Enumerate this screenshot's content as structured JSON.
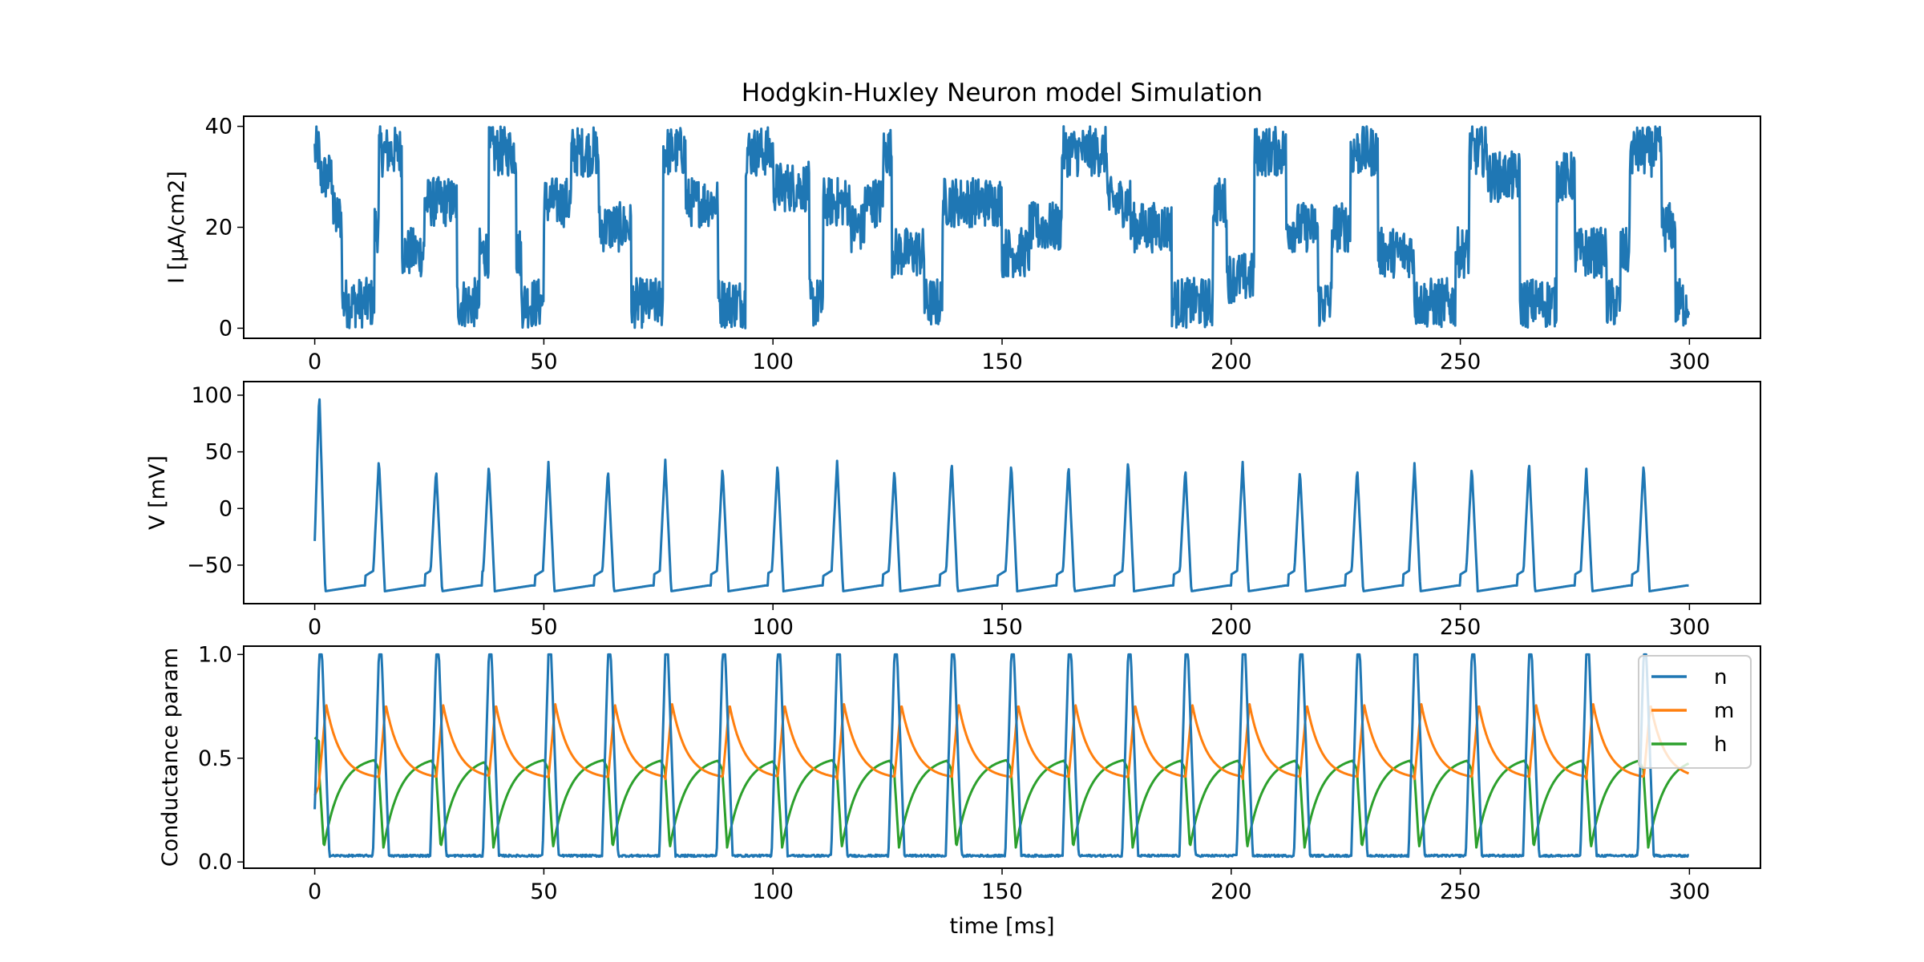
{
  "chart_data": [
    {
      "type": "line",
      "title": "Hodgkin-Huxley Neuron model Simulation",
      "xlabel": "",
      "ylabel": "I [µA/cm2]",
      "xlim": [
        -15.5,
        315.5
      ],
      "ylim": [
        -2,
        42
      ],
      "xticks": [
        0,
        50,
        100,
        150,
        200,
        250,
        300
      ],
      "xtick_labels": [
        "0",
        "50",
        "100",
        "150",
        "200",
        "250",
        "300"
      ],
      "yticks": [
        0,
        20,
        40
      ],
      "ytick_labels": [
        "0",
        "20",
        "40"
      ],
      "grid": false,
      "series": [
        {
          "name": "I",
          "color": "#1f77b4",
          "noise_amplitude": 5,
          "note": "noisy piecewise-constant input current; each segment lists start time (ms) and nominal level (µA/cm2)",
          "segments": [
            [
              0,
              35
            ],
            [
              1,
              30
            ],
            [
              4,
              22
            ],
            [
              6,
              5
            ],
            [
              13,
              20
            ],
            [
              14,
              35
            ],
            [
              19,
              15
            ],
            [
              24,
              25
            ],
            [
              31,
              5
            ],
            [
              36,
              15
            ],
            [
              38,
              35
            ],
            [
              44,
              15
            ],
            [
              45,
              5
            ],
            [
              50,
              25
            ],
            [
              56,
              35
            ],
            [
              62,
              20
            ],
            [
              69,
              5
            ],
            [
              76,
              35
            ],
            [
              81,
              25
            ],
            [
              88,
              5
            ],
            [
              94,
              35
            ],
            [
              100,
              28
            ],
            [
              108,
              5
            ],
            [
              111,
              25
            ],
            [
              117,
              20
            ],
            [
              120,
              25
            ],
            [
              124,
              35
            ],
            [
              126,
              15
            ],
            [
              133,
              5
            ],
            [
              137,
              25
            ],
            [
              141,
              25
            ],
            [
              144,
              25
            ],
            [
              150,
              15
            ],
            [
              156,
              20
            ],
            [
              163,
              35
            ],
            [
              173,
              25
            ],
            [
              178,
              20
            ],
            [
              187,
              5
            ],
            [
              196,
              25
            ],
            [
              199,
              10
            ],
            [
              205,
              35
            ],
            [
              212,
              20
            ],
            [
              219,
              5
            ],
            [
              222,
              20
            ],
            [
              226,
              35
            ],
            [
              232,
              15
            ],
            [
              240,
              5
            ],
            [
              249,
              15
            ],
            [
              252,
              35
            ],
            [
              256,
              30
            ],
            [
              263,
              5
            ],
            [
              271,
              30
            ],
            [
              275,
              15
            ],
            [
              282,
              5
            ],
            [
              285,
              15
            ],
            [
              287,
              35
            ],
            [
              294,
              20
            ],
            [
              297,
              5
            ],
            [
              300,
              5
            ]
          ]
        }
      ]
    },
    {
      "type": "line",
      "title": "",
      "xlabel": "",
      "ylabel": "V [mV]",
      "xlim": [
        -15.5,
        315.5
      ],
      "ylim": [
        -84,
        112
      ],
      "xticks": [
        0,
        50,
        100,
        150,
        200,
        250,
        300
      ],
      "xtick_labels": [
        "0",
        "50",
        "100",
        "150",
        "200",
        "250",
        "300"
      ],
      "yticks": [
        -50,
        0,
        50,
        100
      ],
      "ytick_labels": [
        "−50",
        "0",
        "50",
        "100"
      ],
      "grid": false,
      "resting_potential": -65,
      "spike_trough": -73,
      "series": [
        {
          "name": "V",
          "color": "#1f77b4",
          "spike_times": [
            1,
            14,
            26.5,
            38,
            51,
            64,
            76.5,
            89,
            101,
            114,
            126.5,
            139,
            152,
            164.5,
            177.5,
            190,
            202.5,
            215,
            227.5,
            240,
            252.5,
            265,
            277.5,
            290
          ],
          "spike_peaks": [
            103,
            44,
            35,
            39,
            41,
            35,
            43,
            37,
            40,
            42,
            35,
            42,
            40,
            39,
            43,
            36,
            41,
            34,
            36,
            40,
            37,
            42,
            35,
            40
          ]
        }
      ]
    },
    {
      "type": "line",
      "title": "",
      "xlabel": "time [ms]",
      "ylabel": "Conductance param",
      "xlim": [
        -15.5,
        315.5
      ],
      "ylim": [
        -0.03,
        1.04
      ],
      "xticks": [
        0,
        50,
        100,
        150,
        200,
        250,
        300
      ],
      "xtick_labels": [
        "0",
        "50",
        "100",
        "150",
        "200",
        "250",
        "300"
      ],
      "yticks": [
        0,
        0.5,
        1
      ],
      "ytick_labels": [
        "0.0",
        "0.5",
        "1.0"
      ],
      "grid": false,
      "legend": "top-right",
      "spike_times": [
        1,
        14,
        26.5,
        38,
        51,
        64,
        76.5,
        89,
        101,
        114,
        126.5,
        139,
        152,
        164.5,
        177.5,
        190,
        202.5,
        215,
        227.5,
        240,
        252.5,
        265,
        277.5,
        290
      ],
      "series": [
        {
          "name": "n",
          "color": "#1f77b4",
          "baseline": 0.03,
          "peak": 1.0
        },
        {
          "name": "m",
          "color": "#ff7f0e",
          "baseline": 0.4,
          "peak": 0.76,
          "start": 0.32
        },
        {
          "name": "h",
          "color": "#2ca02c",
          "trough": 0.07,
          "recovery_max": 0.51,
          "start": 0.6
        }
      ]
    }
  ]
}
